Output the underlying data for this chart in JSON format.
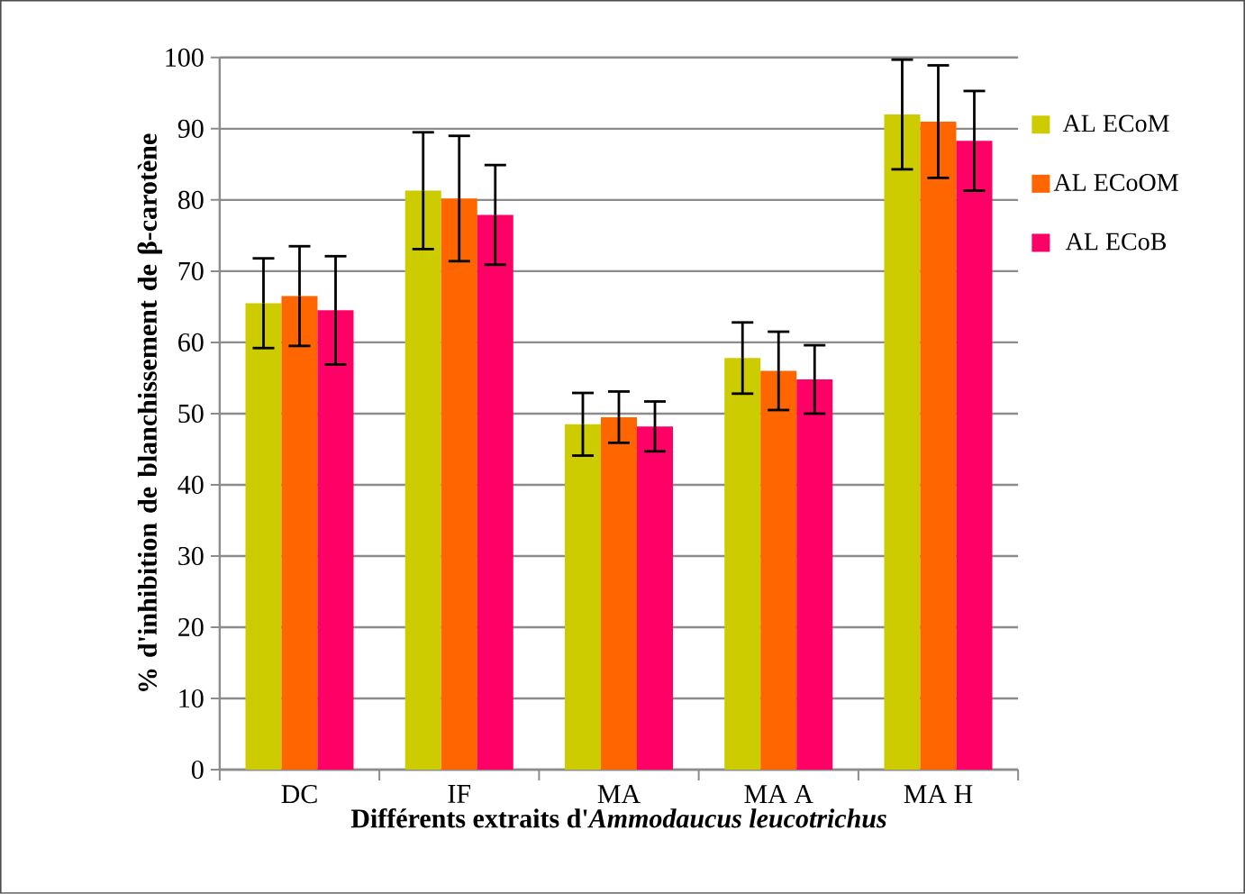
{
  "chart_data": {
    "type": "bar",
    "xlabel": "Différents extraits d'*Ammodaucus leucotrichus*",
    "ylabel": "% d'inhibition de blanchissement de β-carotène",
    "categories": [
      "DC",
      "IF",
      "MA",
      "MA A",
      "MA H"
    ],
    "series": [
      {
        "name": "AL ECoM",
        "color": "#cccc00",
        "values": [
          65.5,
          81.3,
          48.5,
          57.8,
          92
        ],
        "errors": [
          6.3,
          8.2,
          4.4,
          5,
          7.7
        ]
      },
      {
        "name": "AL ECoOM",
        "color": "#ff6600",
        "values": [
          66.5,
          80.2,
          49.5,
          56,
          91
        ],
        "errors": [
          7,
          8.8,
          3.6,
          5.5,
          7.9
        ]
      },
      {
        "name": "AL ECoB",
        "color": "#ff0066",
        "values": [
          64.5,
          77.9,
          48.2,
          54.8,
          88.3
        ],
        "errors": [
          7.6,
          7,
          3.5,
          4.8,
          7
        ]
      }
    ],
    "ylim": [
      0,
      100
    ],
    "yticks": [
      0,
      10,
      20,
      30,
      40,
      50,
      60,
      70,
      80,
      90,
      100
    ],
    "grid": "y",
    "legend": "right"
  }
}
